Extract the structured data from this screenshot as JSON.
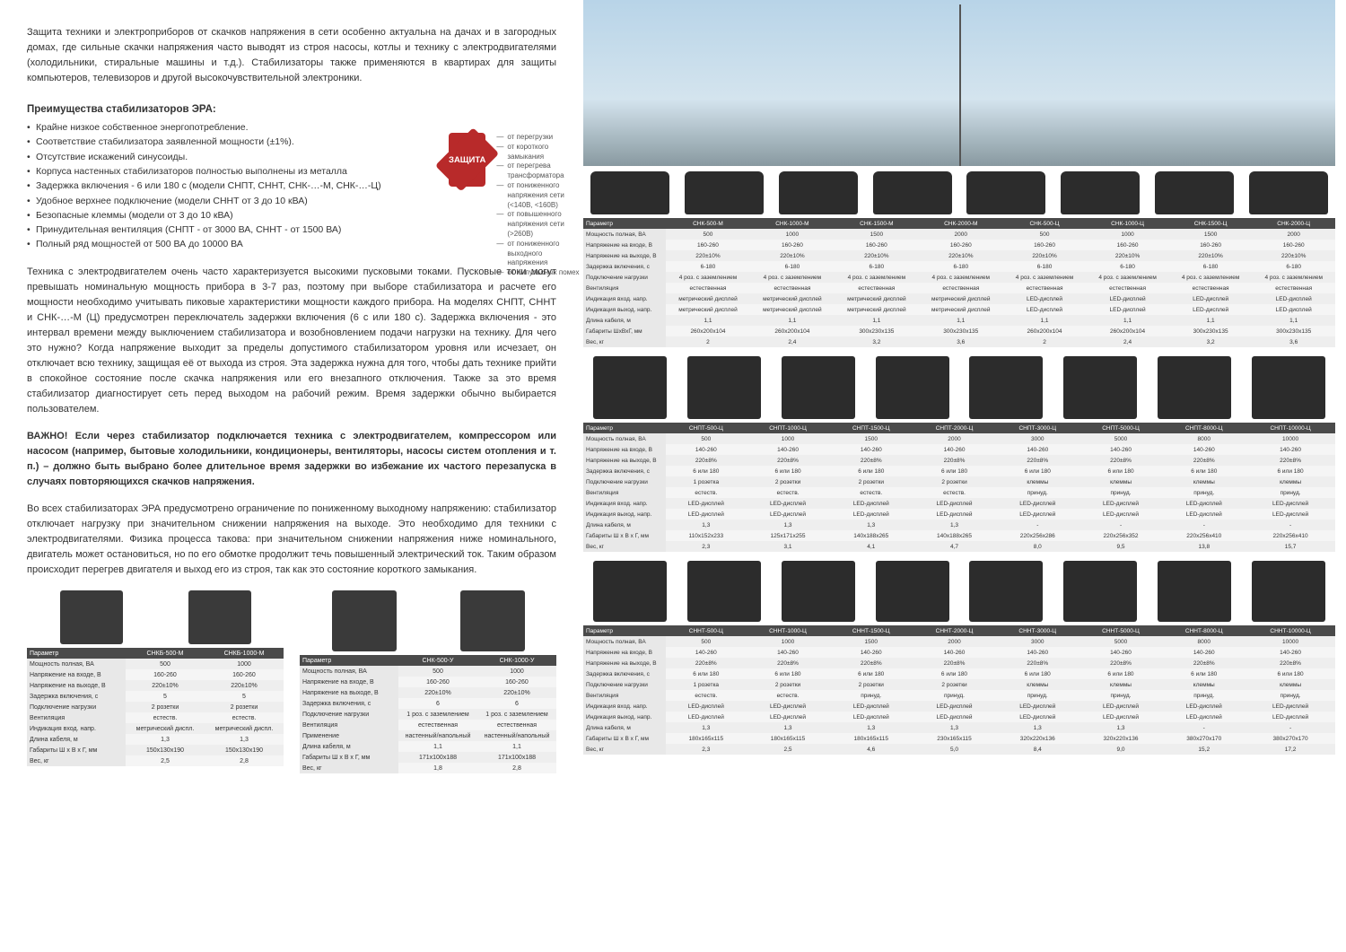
{
  "intro": "Защита техники и электроприборов от скачков напряжения в сети особенно актуальна на дачах и в загородных домах, где сильные скачки напряжения часто выводят из строя насосы, котлы и технику с электродвигателями (холодильники, стиральные машины и т.д.). Стабилизаторы также применяются в квартирах для защиты компьютеров, телевизоров и другой высокочувствительной электроники.",
  "advantages_title": "Преимущества стабилизаторов ЭРА:",
  "advantages": [
    "Крайне низкое собственное энергопотребление.",
    "Соответствие стабилизатора заявленной мощности (±1%).",
    "Отсутствие искажений синусоиды.",
    "Корпуса настенных стабилизаторов полностью выполнены из металла",
    "Задержка включения - 6 или 180 с (модели СНПТ, СННТ, СНК-…-М, СНК-…-Ц)",
    "Удобное верхнее подключение (модели СННТ от 3 до 10 кВА)",
    "Безопасные клеммы (модели от 3 до 10 кВА)",
    "Принудительная вентиляция (СНПТ - от 3000 ВА, СННТ - от 1500 ВА)",
    "Полный ряд мощностей от 500 ВА до 10000 ВА"
  ],
  "badge_text": "ЗАЩИТА",
  "protection": [
    "от перегрузки",
    "от короткого замыкания",
    "от перегрева трансформатора",
    "от пониженного напряжения сети (<140В, <160В)",
    "от повышенного напряжения сети (>260В)",
    "от пониженного выходного напряжения",
    "от импульсных помех"
  ],
  "para1": "Техника с электродвигателем очень часто характеризуется высокими пусковыми токами. Пусковые токи могут превышать номинальную мощность прибора в 3-7 раз, поэтому при выборе стабилизатора и расчете его мощности необходимо учитывать пиковые характеристики мощности каждого прибора. На моделях СНПТ, СННТ и СНК-…-М (Ц) предусмотрен переключатель задержки включения (6 с или 180 с). Задержка включения - это интервал времени между выключением стабилизатора и возобновлением подачи нагрузки на технику. Для чего это нужно? Когда напряжение выходит за пределы допустимого стабилизатором уровня или исчезает, он отключает всю технику, защищая её от выхода из строя. Эта задержка нужна для того, чтобы дать технике прийти в спокойное состояние после скачка напряжения или его внезапного отключения. Также за это время стабилизатор диагностирует сеть перед выходом на рабочий режим. Время задержки обычно выбирается пользователем.",
  "para2": "ВАЖНО! Если через стабилизатор подключается техника с электродвигателем, компрессором или насосом (например, бытовые холодильники, кондиционеры, вентиляторы, насосы систем отопления и т. п.) – должно быть выбрано более длительное время задержки во избежание их частого перезапуска в случаях повторяющихся скачков напряжения.",
  "para3": "Во всех стабилизаторах ЭРА предусмотрено ограничение по пониженному выходному напряжению: стабилизатор отключает нагрузку при значительном снижении напряжения на выходе. Это необходимо для техники с электродвигателями. Физика процесса такова: при значительном снижении напряжения ниже номинального, двигатель может остановиться, но по его обмотке продолжит течь повышенный электрический ток. Таким образом происходит перегрев двигателя и выход его из строя, так как это состояние короткого замыкания.",
  "row_labels": {
    "param": "Параметр",
    "power": "Мощность полная, ВА",
    "vin": "Напряжение на входе, В",
    "vout": "Напряжение на выходе, В",
    "delay": "Задержка включения, с",
    "load": "Подключение нагрузки",
    "vent": "Вентиляция",
    "ind_in": "Индикация вход. напр.",
    "ind_out": "Индикация выход. напр.",
    "cable": "Длина кабеля, м",
    "dims": "Габариты Ш х В х Г, мм",
    "dims2": "Габариты ШхВхГ, мм",
    "weight": "Вес, кг",
    "app": "Применение"
  },
  "table_snkb": {
    "cols": [
      "СНКБ-500-М",
      "СНКБ-1000-М"
    ],
    "rows": [
      [
        "power",
        "500",
        "1000"
      ],
      [
        "vin",
        "160-260",
        "160-260"
      ],
      [
        "vout",
        "220±10%",
        "220±10%"
      ],
      [
        "delay",
        "5",
        "5"
      ],
      [
        "load",
        "2 розетки",
        "2 розетки"
      ],
      [
        "vent",
        "естеств.",
        "естеств."
      ],
      [
        "ind_in",
        "метрический диспл.",
        "метрический диспл."
      ],
      [
        "cable",
        "1,3",
        "1,3"
      ],
      [
        "dims",
        "150x130x190",
        "150x130x190"
      ],
      [
        "weight",
        "2,5",
        "2,8"
      ]
    ]
  },
  "table_snky": {
    "cols": [
      "СНК-500-У",
      "СНК-1000-У"
    ],
    "rows": [
      [
        "power",
        "500",
        "1000"
      ],
      [
        "vin",
        "160-260",
        "160-260"
      ],
      [
        "vout",
        "220±10%",
        "220±10%"
      ],
      [
        "delay",
        "6",
        "6"
      ],
      [
        "load",
        "1 роз. с заземлением",
        "1 роз. с заземлением"
      ],
      [
        "vent",
        "естественная",
        "естественная"
      ],
      [
        "app",
        "настенный/напольный",
        "настенный/напольный"
      ],
      [
        "cable",
        "1,1",
        "1,1"
      ],
      [
        "dims",
        "171x100x188",
        "171x100x188"
      ],
      [
        "weight",
        "1,8",
        "2,8"
      ]
    ]
  },
  "table_snk": {
    "cols": [
      "СНК-500-М",
      "СНК-1000-М",
      "СНК-1500-М",
      "СНК-2000-М",
      "СНК-500-Ц",
      "СНК-1000-Ц",
      "СНК-1500-Ц",
      "СНК-2000-Ц"
    ],
    "rows": [
      [
        "power",
        "500",
        "1000",
        "1500",
        "2000",
        "500",
        "1000",
        "1500",
        "2000"
      ],
      [
        "vin",
        "160-260",
        "160-260",
        "160-260",
        "160-260",
        "160-260",
        "160-260",
        "160-260",
        "160-260"
      ],
      [
        "vout",
        "220±10%",
        "220±10%",
        "220±10%",
        "220±10%",
        "220±10%",
        "220±10%",
        "220±10%",
        "220±10%"
      ],
      [
        "delay",
        "6-180",
        "6-180",
        "6-180",
        "6-180",
        "6-180",
        "6-180",
        "6-180",
        "6-180"
      ],
      [
        "load",
        "4 роз. с заземлением",
        "4 роз. с заземлением",
        "4 роз. с заземлением",
        "4 роз. с заземлением",
        "4 роз. с заземлением",
        "4 роз. с заземлением",
        "4 роз. с заземлением",
        "4 роз. с заземлением"
      ],
      [
        "vent",
        "естественная",
        "естественная",
        "естественная",
        "естественная",
        "естественная",
        "естественная",
        "естественная",
        "естественная"
      ],
      [
        "ind_in",
        "метрический дисплей",
        "метрический дисплей",
        "метрический дисплей",
        "метрический дисплей",
        "LED-дисплей",
        "LED-дисплей",
        "LED-дисплей",
        "LED-дисплей"
      ],
      [
        "ind_out",
        "метрический дисплей",
        "метрический дисплей",
        "метрический дисплей",
        "метрический дисплей",
        "LED-дисплей",
        "LED-дисплей",
        "LED-дисплей",
        "LED-дисплей"
      ],
      [
        "cable",
        "1,1",
        "1,1",
        "1,1",
        "1,1",
        "1,1",
        "1,1",
        "1,1",
        "1,1"
      ],
      [
        "dims2",
        "260x200x104",
        "260x200x104",
        "300x230x135",
        "300x230x135",
        "260x200x104",
        "260x200x104",
        "300x230x135",
        "300x230x135"
      ],
      [
        "weight",
        "2",
        "2,4",
        "3,2",
        "3,6",
        "2",
        "2,4",
        "3,2",
        "3,6"
      ]
    ]
  },
  "table_snpt": {
    "cols": [
      "СНПТ-500-Ц",
      "СНПТ-1000-Ц",
      "СНПТ-1500-Ц",
      "СНПТ-2000-Ц",
      "СНПТ-3000-Ц",
      "СНПТ-5000-Ц",
      "СНПТ-8000-Ц",
      "СНПТ-10000-Ц"
    ],
    "rows": [
      [
        "power",
        "500",
        "1000",
        "1500",
        "2000",
        "3000",
        "5000",
        "8000",
        "10000"
      ],
      [
        "vin",
        "140-260",
        "140-260",
        "140-260",
        "140-260",
        "140-260",
        "140-260",
        "140-260",
        "140-260"
      ],
      [
        "vout",
        "220±8%",
        "220±8%",
        "220±8%",
        "220±8%",
        "220±8%",
        "220±8%",
        "220±8%",
        "220±8%"
      ],
      [
        "delay",
        "6 или 180",
        "6 или 180",
        "6 или 180",
        "6 или 180",
        "6 или 180",
        "6 или 180",
        "6 или 180",
        "6 или 180"
      ],
      [
        "load",
        "1 розетка",
        "2 розетки",
        "2 розетки",
        "2 розетки",
        "клеммы",
        "клеммы",
        "клеммы",
        "клеммы"
      ],
      [
        "vent",
        "естеств.",
        "естеств.",
        "естеств.",
        "естеств.",
        "принуд.",
        "принуд.",
        "принуд.",
        "принуд."
      ],
      [
        "ind_in",
        "LED-дисплей",
        "LED-дисплей",
        "LED-дисплей",
        "LED-дисплей",
        "LED-дисплей",
        "LED-дисплей",
        "LED-дисплей",
        "LED-дисплей"
      ],
      [
        "ind_out",
        "LED-дисплей",
        "LED-дисплей",
        "LED-дисплей",
        "LED-дисплей",
        "LED-дисплей",
        "LED-дисплей",
        "LED-дисплей",
        "LED-дисплей"
      ],
      [
        "cable",
        "1,3",
        "1,3",
        "1,3",
        "1,3",
        "-",
        "-",
        "-",
        "-"
      ],
      [
        "dims",
        "110x152x233",
        "125x171x255",
        "140x188x265",
        "140x188x265",
        "220x256x286",
        "220x256x352",
        "220x256x410",
        "220x256x410"
      ],
      [
        "weight",
        "2,3",
        "3,1",
        "4,1",
        "4,7",
        "8,0",
        "9,5",
        "13,8",
        "15,7"
      ]
    ]
  },
  "table_snnt": {
    "cols": [
      "СННТ-500-Ц",
      "СННТ-1000-Ц",
      "СННТ-1500-Ц",
      "СННТ-2000-Ц",
      "СННТ-3000-Ц",
      "СННТ-5000-Ц",
      "СННТ-8000-Ц",
      "СННТ-10000-Ц"
    ],
    "rows": [
      [
        "power",
        "500",
        "1000",
        "1500",
        "2000",
        "3000",
        "5000",
        "8000",
        "10000"
      ],
      [
        "vin",
        "140-260",
        "140-260",
        "140-260",
        "140-260",
        "140-260",
        "140-260",
        "140-260",
        "140-260"
      ],
      [
        "vout",
        "220±8%",
        "220±8%",
        "220±8%",
        "220±8%",
        "220±8%",
        "220±8%",
        "220±8%",
        "220±8%"
      ],
      [
        "delay",
        "6 или 180",
        "6 или 180",
        "6 или 180",
        "6 или 180",
        "6 или 180",
        "6 или 180",
        "6 или 180",
        "6 или 180"
      ],
      [
        "load",
        "1 розетка",
        "2 розетки",
        "2 розетки",
        "2 розетки",
        "клеммы",
        "клеммы",
        "клеммы",
        "клеммы"
      ],
      [
        "vent",
        "естеств.",
        "естеств.",
        "принуд.",
        "принуд.",
        "принуд.",
        "принуд.",
        "принуд.",
        "принуд."
      ],
      [
        "ind_in",
        "LED-дисплей",
        "LED-дисплей",
        "LED-дисплей",
        "LED-дисплей",
        "LED-дисплей",
        "LED-дисплей",
        "LED-дисплей",
        "LED-дисплей"
      ],
      [
        "ind_out",
        "LED-дисплей",
        "LED-дисплей",
        "LED-дисплей",
        "LED-дисплей",
        "LED-дисплей",
        "LED-дисплей",
        "LED-дисплей",
        "LED-дисплей"
      ],
      [
        "cable",
        "1,3",
        "1,3",
        "1,3",
        "1,3",
        "1,3",
        "1,3",
        "-",
        "-"
      ],
      [
        "dims",
        "180x165x115",
        "180x165x115",
        "180x165x115",
        "230x165x115",
        "320x220x136",
        "320x220x136",
        "380x270x170",
        "380x270x170"
      ],
      [
        "weight",
        "2,3",
        "2,5",
        "4,6",
        "5,0",
        "8,4",
        "9,0",
        "15,2",
        "17,2"
      ]
    ]
  }
}
